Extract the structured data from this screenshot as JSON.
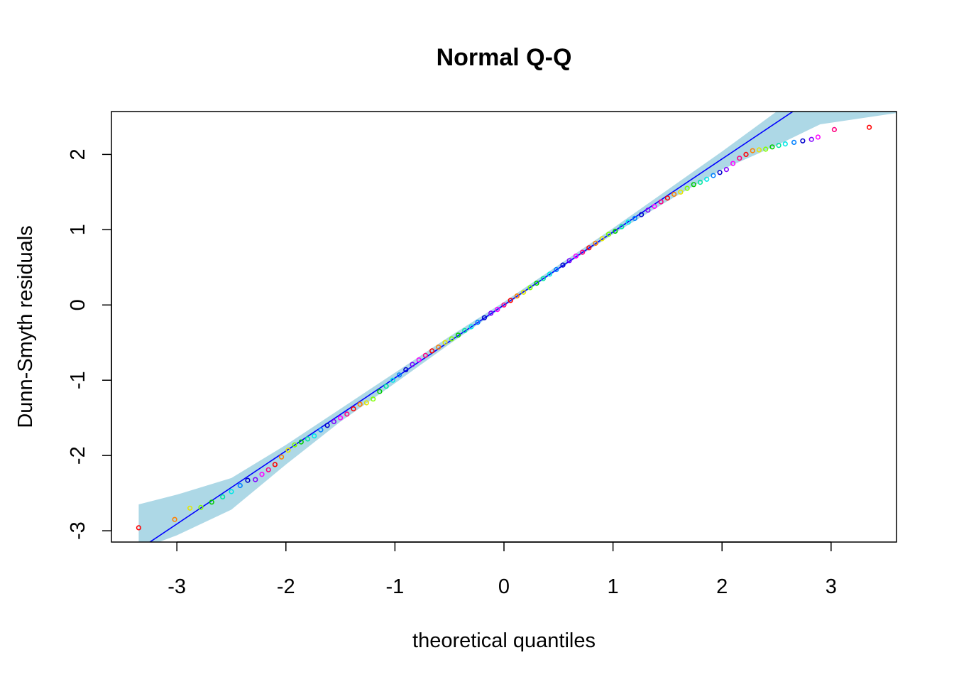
{
  "chart_data": {
    "type": "scatter",
    "title": "Normal Q-Q",
    "xlabel": "theoretical quantiles",
    "ylabel": "Dunn-Smyth residuals",
    "xlim": [
      -3.6,
      3.6
    ],
    "ylim": [
      -3.15,
      2.57
    ],
    "x_ticks": [
      -3,
      -2,
      -1,
      0,
      1,
      2,
      3
    ],
    "y_ticks": [
      -3,
      -2,
      -1,
      0,
      1,
      2
    ],
    "x_tick_labels": [
      "-3",
      "-2",
      "-1",
      "0",
      "1",
      "2",
      "3"
    ],
    "y_tick_labels": [
      "-3",
      "-2",
      "-1",
      "0",
      "1",
      "2"
    ],
    "grid": false,
    "legend": "none",
    "reference_line": {
      "intercept": 0.0,
      "slope": 0.97,
      "color": "#0000ff"
    },
    "envelope": {
      "color": "#add8e6",
      "x": [
        -3.35,
        -3.0,
        -2.5,
        -2.0,
        -1.5,
        -1.0,
        -0.5,
        0.0,
        0.5,
        1.0,
        1.5,
        2.0,
        2.5,
        2.9,
        3.6
      ],
      "lower": [
        -3.25,
        -3.06,
        -2.72,
        -2.12,
        -1.55,
        -1.04,
        -0.52,
        -0.02,
        0.47,
        0.94,
        1.38,
        1.8,
        2.12,
        2.4,
        2.55
      ],
      "upper": [
        -2.65,
        -2.52,
        -2.3,
        -1.86,
        -1.38,
        -0.9,
        -0.42,
        0.04,
        0.53,
        1.02,
        1.53,
        2.04,
        2.57,
        2.6,
        2.6
      ]
    },
    "point_colors": [
      "#ff0000",
      "#ff8000",
      "#e6e600",
      "#80ff00",
      "#00cc00",
      "#00e6a0",
      "#00e6e6",
      "#0080ff",
      "#0000cc",
      "#8000ff",
      "#ff00ff",
      "#ff0080"
    ],
    "points": {
      "x": [
        -3.35,
        -3.02,
        -2.88,
        -2.78,
        -2.68,
        -2.58,
        -2.5,
        -2.42,
        -2.35,
        -2.28,
        -2.22,
        -2.16,
        -2.1,
        -2.04,
        -1.98,
        -1.92,
        -1.86,
        -1.8,
        -1.74,
        -1.68,
        -1.62,
        -1.56,
        -1.5,
        -1.44,
        -1.38,
        -1.32,
        -1.26,
        -1.2,
        -1.14,
        -1.08,
        -1.02,
        -0.96,
        -0.9,
        -0.84,
        -0.78,
        -0.72,
        -0.66,
        -0.6,
        -0.54,
        -0.48,
        -0.42,
        -0.36,
        -0.3,
        -0.24,
        -0.18,
        -0.12,
        -0.06,
        0.0,
        0.06,
        0.12,
        0.18,
        0.24,
        0.3,
        0.36,
        0.42,
        0.48,
        0.54,
        0.6,
        0.66,
        0.72,
        0.78,
        0.84,
        0.9,
        0.96,
        1.02,
        1.08,
        1.14,
        1.2,
        1.26,
        1.32,
        1.38,
        1.44,
        1.5,
        1.56,
        1.62,
        1.68,
        1.74,
        1.8,
        1.86,
        1.92,
        1.98,
        2.04,
        2.1,
        2.16,
        2.22,
        2.28,
        2.34,
        2.4,
        2.46,
        2.52,
        2.58,
        2.66,
        2.74,
        2.82,
        2.88,
        3.03,
        3.35
      ],
      "y": [
        -2.96,
        -2.85,
        -2.7,
        -2.69,
        -2.62,
        -2.55,
        -2.48,
        -2.4,
        -2.33,
        -2.32,
        -2.25,
        -2.19,
        -2.12,
        -2.02,
        -1.93,
        -1.86,
        -1.82,
        -1.78,
        -1.74,
        -1.66,
        -1.6,
        -1.55,
        -1.5,
        -1.45,
        -1.38,
        -1.32,
        -1.3,
        -1.25,
        -1.15,
        -1.08,
        -1.0,
        -0.93,
        -0.86,
        -0.79,
        -0.73,
        -0.67,
        -0.61,
        -0.56,
        -0.5,
        -0.45,
        -0.4,
        -0.34,
        -0.29,
        -0.23,
        -0.17,
        -0.11,
        -0.06,
        0.0,
        0.06,
        0.12,
        0.17,
        0.23,
        0.29,
        0.35,
        0.41,
        0.47,
        0.53,
        0.59,
        0.65,
        0.7,
        0.76,
        0.82,
        0.88,
        0.94,
        0.98,
        1.04,
        1.1,
        1.15,
        1.2,
        1.26,
        1.31,
        1.37,
        1.42,
        1.47,
        1.5,
        1.55,
        1.6,
        1.63,
        1.67,
        1.72,
        1.76,
        1.8,
        1.88,
        1.95,
        2.0,
        2.05,
        2.06,
        2.07,
        2.1,
        2.12,
        2.14,
        2.16,
        2.18,
        2.2,
        2.23,
        2.33,
        2.36
      ]
    }
  }
}
